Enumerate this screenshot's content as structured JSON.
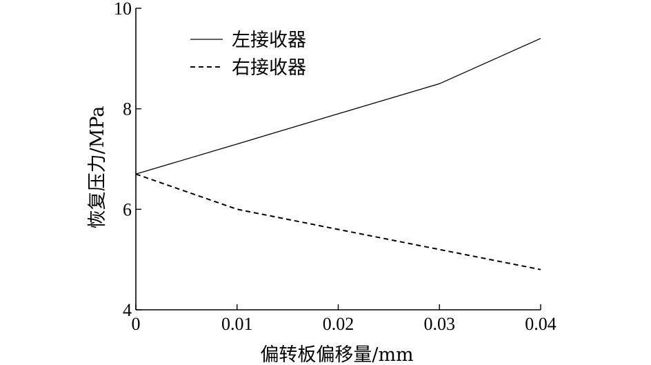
{
  "chart_data": {
    "type": "line",
    "title": "",
    "xlabel": "偏转板偏移量/mm",
    "ylabel": "恢复压力/MPa",
    "xlim": [
      0,
      0.04
    ],
    "ylim": [
      4,
      10
    ],
    "xticks": [
      0,
      0.01,
      0.02,
      0.03,
      0.04
    ],
    "xtick_labels": [
      "0",
      "0.01",
      "0.02",
      "0.03",
      "0.04"
    ],
    "yticks": [
      4,
      6,
      8,
      10
    ],
    "ytick_labels": [
      "4",
      "6",
      "8",
      "10"
    ],
    "grid": false,
    "legend_position": "top-left",
    "series": [
      {
        "name": "左接收器",
        "style": "solid",
        "color": "#000000",
        "x": [
          0,
          0.01,
          0.02,
          0.03,
          0.04
        ],
        "y": [
          6.7,
          7.3,
          7.9,
          8.5,
          9.4
        ]
      },
      {
        "name": "右接收器",
        "style": "dashed",
        "color": "#000000",
        "x": [
          0,
          0.01,
          0.02,
          0.03,
          0.04
        ],
        "y": [
          6.7,
          6.0,
          5.6,
          5.2,
          4.8
        ]
      }
    ]
  }
}
